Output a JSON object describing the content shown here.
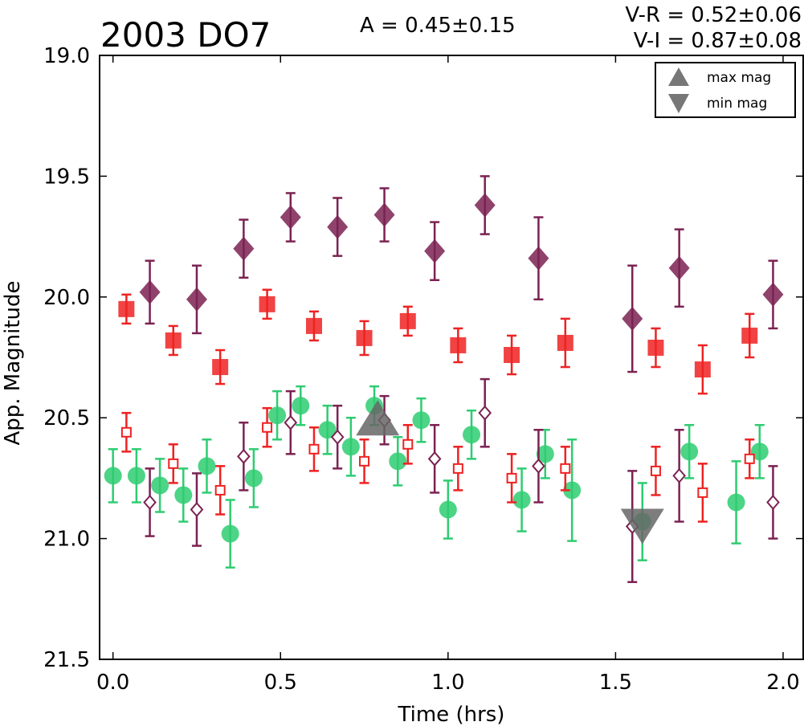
{
  "chart_data": {
    "type": "scatter",
    "title": "2003 DO7",
    "xlabel": "Time (hrs)",
    "ylabel": "App. Magnitude",
    "xlim": [
      -0.04,
      2.06
    ],
    "ylim": [
      21.5,
      19.0
    ],
    "y_inverted": true,
    "xticks": [
      "0.0",
      "0.5",
      "1.0",
      "1.5",
      "2.0"
    ],
    "yticks": [
      "19.0",
      "19.5",
      "20.0",
      "20.5",
      "21.0",
      "21.5"
    ],
    "annotations": {
      "amplitude": "A  = 0.45±0.15",
      "vr": "V-R = 0.52±0.06",
      "vi": "V-I  = 0.87±0.08"
    },
    "legend": {
      "placement": "top-right",
      "entries": [
        {
          "label": "max mag",
          "marker": "triangle-up",
          "color": "#777777"
        },
        {
          "label": "min mag",
          "marker": "triangle-down",
          "color": "#777777"
        }
      ]
    },
    "max_mag_marker": {
      "x": 0.79,
      "y": 20.52
    },
    "min_mag_marker": {
      "x": 1.58,
      "y": 20.93
    },
    "series": [
      {
        "key": "green_circles",
        "marker": "circle",
        "filled": true,
        "color": "#2ecc71",
        "points": [
          {
            "x": 0.0,
            "y": 20.74,
            "err": 0.11
          },
          {
            "x": 0.07,
            "y": 20.74,
            "err": 0.11
          },
          {
            "x": 0.14,
            "y": 20.78,
            "err": 0.11
          },
          {
            "x": 0.21,
            "y": 20.82,
            "err": 0.11
          },
          {
            "x": 0.28,
            "y": 20.7,
            "err": 0.11
          },
          {
            "x": 0.35,
            "y": 20.98,
            "err": 0.14
          },
          {
            "x": 0.42,
            "y": 20.75,
            "err": 0.12
          },
          {
            "x": 0.49,
            "y": 20.49,
            "err": 0.1
          },
          {
            "x": 0.56,
            "y": 20.45,
            "err": 0.08
          },
          {
            "x": 0.64,
            "y": 20.55,
            "err": 0.1
          },
          {
            "x": 0.71,
            "y": 20.62,
            "err": 0.12
          },
          {
            "x": 0.78,
            "y": 20.45,
            "err": 0.08
          },
          {
            "x": 0.85,
            "y": 20.68,
            "err": 0.1
          },
          {
            "x": 0.92,
            "y": 20.51,
            "err": 0.09
          },
          {
            "x": 1.0,
            "y": 20.88,
            "err": 0.12
          },
          {
            "x": 1.07,
            "y": 20.57,
            "err": 0.1
          },
          {
            "x": 1.22,
            "y": 20.84,
            "err": 0.13
          },
          {
            "x": 1.29,
            "y": 20.65,
            "err": 0.1
          },
          {
            "x": 1.37,
            "y": 20.8,
            "err": 0.21
          },
          {
            "x": 1.58,
            "y": 20.93,
            "err": 0.16
          },
          {
            "x": 1.72,
            "y": 20.64,
            "err": 0.11
          },
          {
            "x": 1.86,
            "y": 20.85,
            "err": 0.17
          },
          {
            "x": 1.93,
            "y": 20.64,
            "err": 0.11
          }
        ]
      },
      {
        "key": "red_open_squares",
        "marker": "square",
        "filled": false,
        "color": "#ee2222",
        "points": [
          {
            "x": 0.04,
            "y": 20.56,
            "err": 0.08
          },
          {
            "x": 0.18,
            "y": 20.69,
            "err": 0.08
          },
          {
            "x": 0.32,
            "y": 20.8,
            "err": 0.1
          },
          {
            "x": 0.46,
            "y": 20.54,
            "err": 0.08
          },
          {
            "x": 0.6,
            "y": 20.63,
            "err": 0.09
          },
          {
            "x": 0.75,
            "y": 20.68,
            "err": 0.09
          },
          {
            "x": 0.88,
            "y": 20.61,
            "err": 0.08
          },
          {
            "x": 1.03,
            "y": 20.71,
            "err": 0.09
          },
          {
            "x": 1.19,
            "y": 20.75,
            "err": 0.1
          },
          {
            "x": 1.35,
            "y": 20.71,
            "err": 0.09
          },
          {
            "x": 1.62,
            "y": 20.72,
            "err": 0.1
          },
          {
            "x": 1.76,
            "y": 20.81,
            "err": 0.12
          },
          {
            "x": 1.9,
            "y": 20.67,
            "err": 0.08
          }
        ]
      },
      {
        "key": "purple_open_diamonds",
        "marker": "diamond",
        "filled": false,
        "color": "#7b2252",
        "points": [
          {
            "x": 0.11,
            "y": 20.85,
            "err": 0.14
          },
          {
            "x": 0.25,
            "y": 20.88,
            "err": 0.15
          },
          {
            "x": 0.39,
            "y": 20.66,
            "err": 0.14
          },
          {
            "x": 0.53,
            "y": 20.52,
            "err": 0.13
          },
          {
            "x": 0.67,
            "y": 20.58,
            "err": 0.13
          },
          {
            "x": 0.81,
            "y": 20.51,
            "err": 0.1
          },
          {
            "x": 0.96,
            "y": 20.67,
            "err": 0.14
          },
          {
            "x": 1.11,
            "y": 20.48,
            "err": 0.14
          },
          {
            "x": 1.27,
            "y": 20.7,
            "err": 0.15
          },
          {
            "x": 1.55,
            "y": 20.95,
            "err": 0.23
          },
          {
            "x": 1.69,
            "y": 20.74,
            "err": 0.19
          },
          {
            "x": 1.97,
            "y": 20.85,
            "err": 0.15
          }
        ]
      },
      {
        "key": "red_filled_squares",
        "marker": "square",
        "filled": true,
        "color": "#ee2222",
        "points": [
          {
            "x": 0.04,
            "y": 20.05,
            "err": 0.06
          },
          {
            "x": 0.18,
            "y": 20.18,
            "err": 0.06
          },
          {
            "x": 0.32,
            "y": 20.29,
            "err": 0.07
          },
          {
            "x": 0.46,
            "y": 20.03,
            "err": 0.06
          },
          {
            "x": 0.6,
            "y": 20.12,
            "err": 0.06
          },
          {
            "x": 0.75,
            "y": 20.17,
            "err": 0.07
          },
          {
            "x": 0.88,
            "y": 20.1,
            "err": 0.06
          },
          {
            "x": 1.03,
            "y": 20.2,
            "err": 0.07
          },
          {
            "x": 1.19,
            "y": 20.24,
            "err": 0.08
          },
          {
            "x": 1.35,
            "y": 20.19,
            "err": 0.1
          },
          {
            "x": 1.62,
            "y": 20.21,
            "err": 0.08
          },
          {
            "x": 1.76,
            "y": 20.3,
            "err": 0.1
          },
          {
            "x": 1.9,
            "y": 20.16,
            "err": 0.09
          }
        ]
      },
      {
        "key": "purple_filled_diamonds",
        "marker": "diamond",
        "filled": true,
        "color": "#7b2252",
        "points": [
          {
            "x": 0.11,
            "y": 19.98,
            "err": 0.13
          },
          {
            "x": 0.25,
            "y": 20.01,
            "err": 0.14
          },
          {
            "x": 0.39,
            "y": 19.8,
            "err": 0.12
          },
          {
            "x": 0.53,
            "y": 19.67,
            "err": 0.1
          },
          {
            "x": 0.67,
            "y": 19.71,
            "err": 0.12
          },
          {
            "x": 0.81,
            "y": 19.66,
            "err": 0.11
          },
          {
            "x": 0.96,
            "y": 19.81,
            "err": 0.12
          },
          {
            "x": 1.11,
            "y": 19.62,
            "err": 0.12
          },
          {
            "x": 1.27,
            "y": 19.84,
            "err": 0.17
          },
          {
            "x": 1.55,
            "y": 20.09,
            "err": 0.22
          },
          {
            "x": 1.69,
            "y": 19.88,
            "err": 0.16
          },
          {
            "x": 1.97,
            "y": 19.99,
            "err": 0.14
          }
        ]
      }
    ]
  }
}
